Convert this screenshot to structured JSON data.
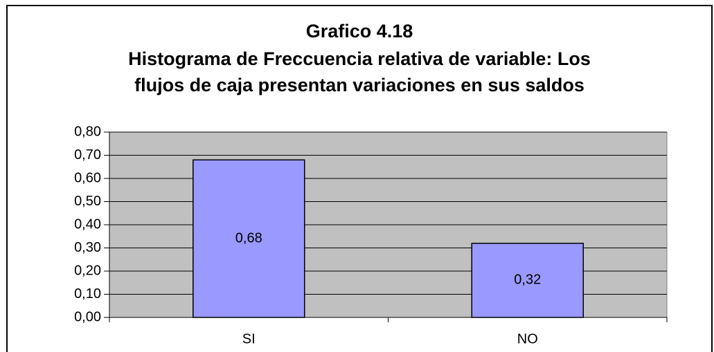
{
  "chart_data": {
    "type": "bar",
    "title": [
      "Grafico 4.18",
      "Histograma de Freccuencia relativa de variable: Los",
      "flujos de caja presentan variaciones en sus saldos"
    ],
    "categories": [
      "SI",
      "NO"
    ],
    "values": [
      0.68,
      0.32
    ],
    "value_labels": [
      "0,68",
      "0,32"
    ],
    "color": "#9999ff",
    "ylim": [
      0,
      0.8
    ],
    "yticks": [
      {
        "value": 0,
        "label": "0,00"
      },
      {
        "value": 0.1,
        "label": "0,10"
      },
      {
        "value": 0.2,
        "label": "0,20"
      },
      {
        "value": 0.3,
        "label": "0,30"
      },
      {
        "value": 0.4,
        "label": "0,40"
      },
      {
        "value": 0.5,
        "label": "0,50"
      },
      {
        "value": 0.6,
        "label": "0,60"
      },
      {
        "value": 0.7,
        "label": "0,70"
      },
      {
        "value": 0.8,
        "label": "0,80"
      }
    ],
    "grid": true
  }
}
